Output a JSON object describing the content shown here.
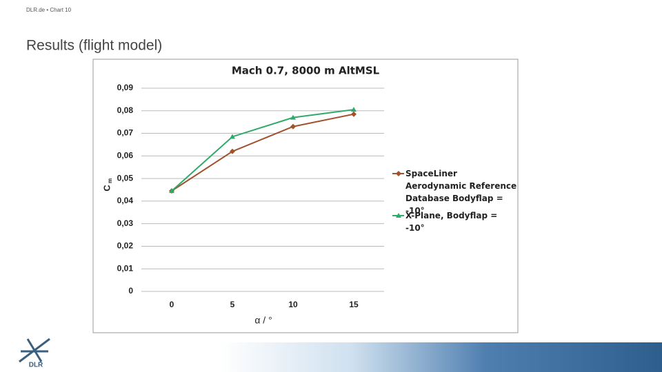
{
  "header": {
    "breadcrumb": "DLR.de  •  Chart 10",
    "title": "Results (flight model)",
    "logo": "DLR"
  },
  "chart_data": {
    "type": "line",
    "title": "Mach 0.7, 8000 m AltMSL",
    "x_label": "α / °",
    "y_label": {
      "base": "C",
      "sub": "m"
    },
    "categories": [
      "0",
      "5",
      "10",
      "15"
    ],
    "series": [
      {
        "name": "SpaceLiner Aerodynamic Reference Database Bodyflap = -10°",
        "color": "#a0522d",
        "marker": "diamond",
        "values": [
          0.0445,
          0.062,
          0.073,
          0.0785
        ]
      },
      {
        "name": "X-Plane, Bodyflap = -10°",
        "color": "#2eaa6a",
        "marker": "triangle",
        "values": [
          0.0445,
          0.0685,
          0.077,
          0.0805
        ]
      }
    ],
    "ylim": [
      0,
      0.09
    ],
    "yticks": [
      0,
      {
        "value": 0.01,
        "label": "0,01"
      },
      {
        "value": 0.02,
        "label": "0,02"
      },
      {
        "value": 0.03,
        "label": "0,03"
      },
      {
        "value": 0.04,
        "label": "0,04"
      },
      {
        "value": 0.05,
        "label": "0,05"
      },
      {
        "value": 0.06,
        "label": "0,06"
      },
      {
        "value": 0.07,
        "label": "0,07"
      },
      {
        "value": 0.08,
        "label": "0,08"
      },
      {
        "value": 0.09,
        "label": "0,09"
      }
    ],
    "grid": true,
    "legend": "right"
  }
}
